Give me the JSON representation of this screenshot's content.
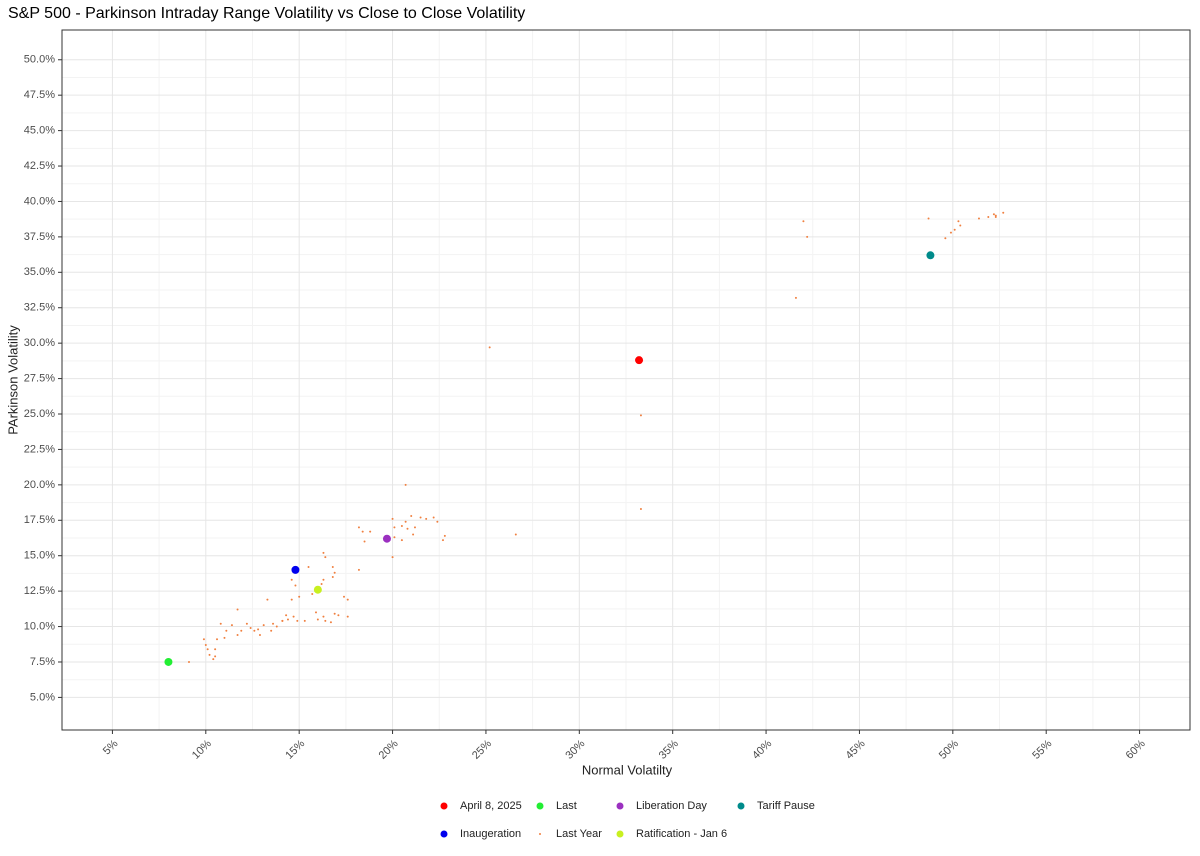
{
  "chart_data": {
    "type": "scatter",
    "title": "S&P 500 - Parkinson Intraday Range Volatility vs Close to Close Volatility",
    "x_label": "Normal Volatilty",
    "y_label": "PArkinson Volatility",
    "xlim": [
      2.3,
      62.7
    ],
    "ylim": [
      2.7,
      52.1
    ],
    "xticks": [
      {
        "value": 5,
        "label": "5%"
      },
      {
        "value": 10,
        "label": "10%"
      },
      {
        "value": 15,
        "label": "15%"
      },
      {
        "value": 20,
        "label": "20%"
      },
      {
        "value": 25,
        "label": "25%"
      },
      {
        "value": 30,
        "label": "30%"
      },
      {
        "value": 35,
        "label": "35%"
      },
      {
        "value": 40,
        "label": "40%"
      },
      {
        "value": 45,
        "label": "45%"
      },
      {
        "value": 50,
        "label": "50%"
      },
      {
        "value": 55,
        "label": "55%"
      },
      {
        "value": 60,
        "label": "60%"
      }
    ],
    "yticks": [
      {
        "value": 5,
        "label": "5.0%"
      },
      {
        "value": 7.5,
        "label": "7.5%"
      },
      {
        "value": 10,
        "label": "10.0%"
      },
      {
        "value": 12.5,
        "label": "12.5%"
      },
      {
        "value": 15,
        "label": "15.0%"
      },
      {
        "value": 17.5,
        "label": "17.5%"
      },
      {
        "value": 20,
        "label": "20.0%"
      },
      {
        "value": 22.5,
        "label": "22.5%"
      },
      {
        "value": 25,
        "label": "25.0%"
      },
      {
        "value": 27.5,
        "label": "27.5%"
      },
      {
        "value": 30,
        "label": "30.0%"
      },
      {
        "value": 32.5,
        "label": "32.5%"
      },
      {
        "value": 35,
        "label": "35.0%"
      },
      {
        "value": 37.5,
        "label": "37.5%"
      },
      {
        "value": 40,
        "label": "40.0%"
      },
      {
        "value": 42.5,
        "label": "42.5%"
      },
      {
        "value": 45,
        "label": "45.0%"
      },
      {
        "value": 47.5,
        "label": "47.5%"
      },
      {
        "value": 50,
        "label": "50.0%"
      }
    ],
    "grid": true,
    "legend": "bottom",
    "series": [
      {
        "name": "April 8, 2025",
        "color": "#ff0000",
        "x": [
          33.2
        ],
        "values": [
          28.8
        ]
      },
      {
        "name": "Last",
        "color": "#22ee33",
        "x": [
          8.0
        ],
        "values": [
          7.5
        ]
      },
      {
        "name": "Liberation Day",
        "color": "#9b30c0",
        "x": [
          19.7
        ],
        "values": [
          16.2
        ]
      },
      {
        "name": "Tariff Pause",
        "color": "#008b8b",
        "x": [
          48.8
        ],
        "values": [
          36.2
        ]
      },
      {
        "name": "Inaugeration",
        "color": "#0000ee",
        "x": [
          14.8
        ],
        "values": [
          14.0
        ]
      },
      {
        "name": "Last Year",
        "color": "#f08040",
        "x": [
          48.7,
          50.3,
          50.4,
          50.1,
          49.9,
          49.6,
          51.4,
          51.9,
          52.2,
          52.3,
          52.7,
          52.3,
          42.0,
          42.2,
          41.6,
          25.2,
          33.3,
          33.3,
          20.7,
          26.6,
          18.2,
          18.4,
          18.8,
          18.5,
          20.0,
          20.1,
          20.1,
          20.5,
          20.7,
          20.8,
          21.0,
          21.1,
          21.2,
          21.5,
          21.8,
          22.2,
          22.4,
          22.7,
          22.8,
          20.0,
          18.2,
          20.5,
          16.3,
          16.4,
          16.8,
          16.9,
          16.8,
          16.3,
          16.2,
          15.5,
          14.6,
          14.8,
          15.0,
          15.7,
          17.4,
          17.6,
          15.9,
          16.3,
          16.0,
          16.4,
          16.9,
          17.1,
          17.6,
          16.7,
          15.3,
          13.3,
          14.6,
          14.3,
          14.4,
          14.1,
          14.7,
          14.9,
          9.1,
          9.9,
          10.0,
          10.2,
          10.4,
          10.5,
          10.1,
          10.6,
          10.8,
          11.0,
          11.4,
          11.7,
          11.7,
          11.9,
          12.2,
          12.4,
          12.6,
          12.8,
          12.9,
          13.1,
          13.5,
          13.6,
          13.8,
          14.1,
          11.1,
          10.5
        ],
        "values": [
          38.8,
          38.6,
          38.3,
          38.0,
          37.8,
          37.4,
          38.8,
          38.9,
          39.1,
          39.0,
          39.2,
          38.9,
          38.6,
          37.5,
          33.2,
          29.7,
          24.9,
          18.3,
          20.0,
          16.5,
          17.0,
          16.7,
          16.7,
          16.0,
          17.6,
          17.0,
          16.3,
          17.1,
          17.4,
          16.9,
          17.8,
          16.5,
          17.0,
          17.7,
          17.6,
          17.7,
          17.4,
          16.1,
          16.4,
          14.9,
          14.0,
          16.1,
          15.2,
          14.9,
          14.2,
          13.8,
          13.5,
          13.3,
          13.0,
          14.2,
          13.3,
          12.9,
          12.1,
          12.3,
          12.1,
          11.9,
          11.0,
          10.7,
          10.5,
          10.4,
          10.9,
          10.8,
          10.7,
          10.3,
          10.4,
          11.9,
          11.9,
          10.8,
          10.5,
          10.4,
          10.7,
          10.4,
          7.5,
          9.1,
          8.7,
          8.0,
          7.7,
          7.9,
          8.4,
          9.1,
          10.2,
          9.2,
          10.1,
          11.2,
          9.4,
          9.7,
          10.2,
          9.9,
          9.7,
          9.8,
          9.4,
          10.1,
          9.7,
          10.2,
          10.0,
          10.4,
          9.7,
          8.4
        ]
      },
      {
        "name": "Ratification - Jan 6",
        "color": "#c8f020",
        "x": [
          16.0
        ],
        "values": [
          12.6
        ]
      }
    ]
  }
}
